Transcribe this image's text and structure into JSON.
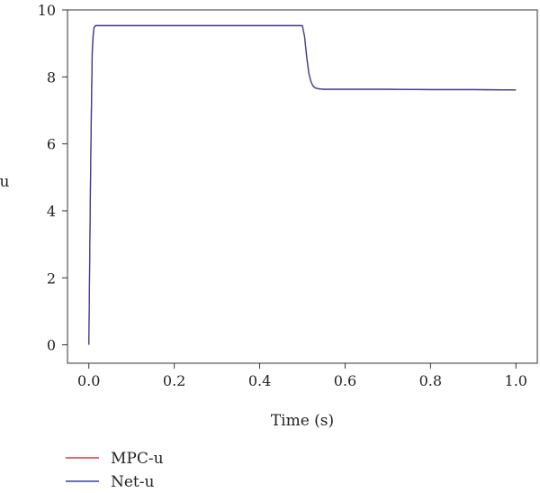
{
  "chart_data": {
    "type": "line",
    "title": "",
    "xlabel": "Time (s)",
    "ylabel": "u",
    "xlim": [
      -0.05,
      1.05
    ],
    "ylim": [
      -0.55,
      10
    ],
    "xticks": [
      0.0,
      0.2,
      0.4,
      0.6,
      0.8,
      1.0
    ],
    "xtick_labels": [
      "0.0",
      "0.2",
      "0.4",
      "0.6",
      "0.8",
      "1.0"
    ],
    "yticks": [
      0,
      2,
      4,
      6,
      8,
      10
    ],
    "ytick_labels": [
      "0",
      "2",
      "4",
      "6",
      "8",
      "10"
    ],
    "grid": false,
    "legend_position": "bottom-left",
    "series": [
      {
        "name": "MPC-u",
        "color": "#e8333a",
        "x": [
          0.0,
          0.002,
          0.004,
          0.006,
          0.008,
          0.01,
          0.012,
          0.015,
          0.1,
          0.2,
          0.3,
          0.4,
          0.49,
          0.5,
          0.505,
          0.51,
          0.515,
          0.52,
          0.525,
          0.53,
          0.54,
          0.55,
          0.6,
          0.7,
          0.8,
          0.9,
          1.0
        ],
        "y": [
          0.0,
          2.5,
          5.0,
          7.0,
          8.7,
          9.2,
          9.45,
          9.53,
          9.53,
          9.53,
          9.53,
          9.53,
          9.53,
          9.53,
          9.2,
          8.6,
          8.1,
          7.85,
          7.72,
          7.67,
          7.64,
          7.63,
          7.63,
          7.63,
          7.62,
          7.62,
          7.61
        ]
      },
      {
        "name": "Net-u",
        "color": "#3d3f9c",
        "x": [
          0.0,
          0.002,
          0.004,
          0.006,
          0.008,
          0.01,
          0.012,
          0.015,
          0.1,
          0.2,
          0.3,
          0.4,
          0.49,
          0.5,
          0.505,
          0.51,
          0.515,
          0.52,
          0.525,
          0.53,
          0.54,
          0.55,
          0.6,
          0.7,
          0.8,
          0.9,
          1.0
        ],
        "y": [
          0.0,
          2.6,
          5.1,
          7.1,
          8.8,
          9.25,
          9.47,
          9.53,
          9.53,
          9.53,
          9.53,
          9.53,
          9.53,
          9.53,
          9.22,
          8.62,
          8.12,
          7.86,
          7.73,
          7.67,
          7.64,
          7.63,
          7.63,
          7.63,
          7.62,
          7.62,
          7.61
        ]
      }
    ]
  }
}
